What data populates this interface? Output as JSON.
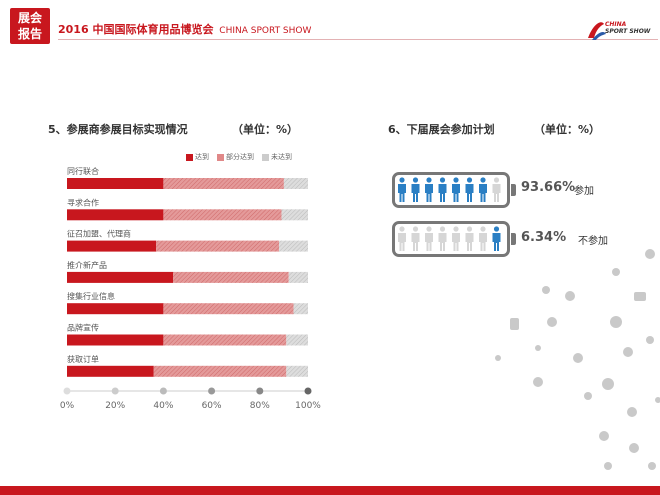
{
  "header": {
    "badge_line1": "展会",
    "badge_line2": "报告",
    "title_cn": "2016 中国国际体育用品博览会",
    "title_en": "CHINA SPORT SHOW",
    "logo_line1": "CHINA",
    "logo_line2": "SPORT SHOW"
  },
  "left_section": {
    "title": "5、参展商参展目标实现情况",
    "unit": "（单位：%）"
  },
  "right_section": {
    "title": "6、下届展会参加计划",
    "unit": "（单位：%）",
    "items": [
      {
        "value_text": "93.66%",
        "label": "参加",
        "value": 93.66
      },
      {
        "value_text": "6.34%",
        "label": "不参加",
        "value": 6.34
      }
    ],
    "colors": {
      "highlight": "#2a7fc4",
      "muted": "#d6d6d6"
    }
  },
  "chart_data": {
    "type": "bar",
    "orientation": "horizontal",
    "stacked": true,
    "categories": [
      "同行联合",
      "寻求合作",
      "征召加盟、代理商",
      "推介新产品",
      "搜集行业信息",
      "品牌宣传",
      "获取订单"
    ],
    "series": [
      {
        "name": "达到",
        "color": "#c8171e",
        "values": [
          40,
          40,
          37,
          44,
          40,
          40,
          36
        ]
      },
      {
        "name": "部分达到",
        "color": "#e08888",
        "values": [
          50,
          49,
          51,
          48,
          54,
          51,
          55
        ]
      },
      {
        "name": "未达到",
        "color": "#cccccc",
        "values": [
          10,
          11,
          12,
          8,
          6,
          9,
          9
        ]
      }
    ],
    "xlim": [
      0,
      100
    ],
    "ticks": [
      "0%",
      "20%",
      "40%",
      "60%",
      "80%",
      "100%"
    ],
    "legend_position": "top-right"
  }
}
